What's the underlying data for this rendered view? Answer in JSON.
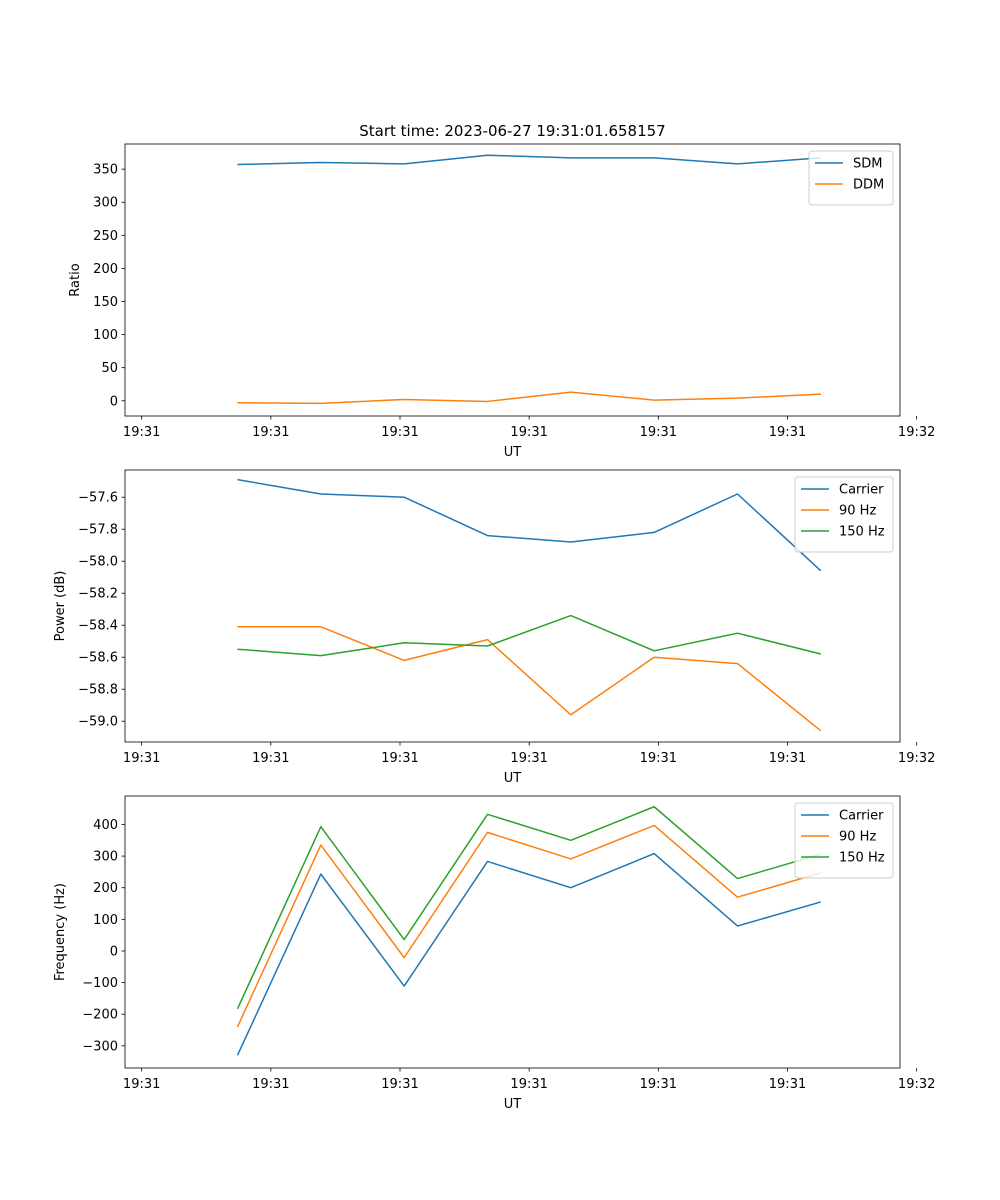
{
  "figure": {
    "title": "Start time: 2023-06-27 19:31:01.658157"
  },
  "chart_data": [
    {
      "type": "line",
      "title": "Start time: 2023-06-27 19:31:01.658157",
      "xlabel": "UT",
      "ylabel": "Ratio",
      "x_tick_labels": [
        "19:31",
        "19:31",
        "19:31",
        "19:31",
        "19:31",
        "19:31",
        "19:32"
      ],
      "y_ticks": [
        0,
        50,
        100,
        150,
        200,
        250,
        300,
        350
      ],
      "ylim": [
        -23,
        388
      ],
      "legend_position": "top-right",
      "x": [
        1,
        2,
        3,
        4,
        5,
        6,
        7,
        8
      ],
      "xlim": [
        -0.35,
        8.95
      ],
      "x_tick_positions": [
        -0.15,
        1.4,
        2.95,
        4.5,
        6.05,
        7.6,
        9.15
      ],
      "series": [
        {
          "name": "SDM",
          "color": "#1f77b4",
          "values": [
            357,
            360,
            358,
            371,
            367,
            367,
            358,
            367
          ]
        },
        {
          "name": "DDM",
          "color": "#ff7f0e",
          "values": [
            -3,
            -4,
            2,
            -1,
            13,
            1,
            4,
            10
          ]
        }
      ]
    },
    {
      "type": "line",
      "xlabel": "UT",
      "ylabel": "Power (dB)",
      "x_tick_labels": [
        "19:31",
        "19:31",
        "19:31",
        "19:31",
        "19:31",
        "19:31",
        "19:32"
      ],
      "y_ticks": [
        -59.0,
        -58.8,
        -58.6,
        -58.4,
        -58.2,
        -58.0,
        -57.8,
        -57.6
      ],
      "y_tick_labels": [
        "−59.0",
        "−58.8",
        "−58.6",
        "−58.4",
        "−58.2",
        "−58.0",
        "−57.8",
        "−57.6"
      ],
      "ylim": [
        -59.13,
        -57.43
      ],
      "legend_position": "top-right",
      "x": [
        1,
        2,
        3,
        4,
        5,
        6,
        7,
        8
      ],
      "xlim": [
        -0.35,
        8.95
      ],
      "x_tick_positions": [
        -0.15,
        1.4,
        2.95,
        4.5,
        6.05,
        7.6,
        9.15
      ],
      "series": [
        {
          "name": "Carrier",
          "color": "#1f77b4",
          "values": [
            -57.49,
            -57.58,
            -57.6,
            -57.84,
            -57.88,
            -57.82,
            -57.58,
            -58.06
          ]
        },
        {
          "name": "90 Hz",
          "color": "#ff7f0e",
          "values": [
            -58.41,
            -58.41,
            -58.62,
            -58.49,
            -58.96,
            -58.6,
            -58.64,
            -59.06
          ]
        },
        {
          "name": "150 Hz",
          "color": "#2ca02c",
          "values": [
            -58.55,
            -58.59,
            -58.51,
            -58.53,
            -58.34,
            -58.56,
            -58.45,
            -58.58
          ]
        }
      ]
    },
    {
      "type": "line",
      "xlabel": "UT",
      "ylabel": "Frequency (Hz)",
      "x_tick_labels": [
        "19:31",
        "19:31",
        "19:31",
        "19:31",
        "19:31",
        "19:31",
        "19:32"
      ],
      "y_ticks": [
        -300,
        -200,
        -100,
        0,
        100,
        200,
        300,
        400
      ],
      "y_tick_labels": [
        "−300",
        "−200",
        "−100",
        "0",
        "100",
        "200",
        "300",
        "400"
      ],
      "ylim": [
        -370,
        490
      ],
      "legend_position": "top-right",
      "x": [
        1,
        2,
        3,
        4,
        5,
        6,
        7,
        8
      ],
      "xlim": [
        -0.35,
        8.95
      ],
      "x_tick_positions": [
        -0.15,
        1.4,
        2.95,
        4.5,
        6.05,
        7.6,
        9.15
      ],
      "series": [
        {
          "name": "Carrier",
          "color": "#1f77b4",
          "values": [
            -330,
            243,
            -111,
            283,
            200,
            308,
            79,
            155
          ]
        },
        {
          "name": "90 Hz",
          "color": "#ff7f0e",
          "values": [
            -240,
            335,
            -21,
            375,
            291,
            397,
            170,
            247
          ]
        },
        {
          "name": "150 Hz",
          "color": "#2ca02c",
          "values": [
            -183,
            393,
            36,
            432,
            350,
            456,
            229,
            306
          ]
        }
      ]
    }
  ]
}
